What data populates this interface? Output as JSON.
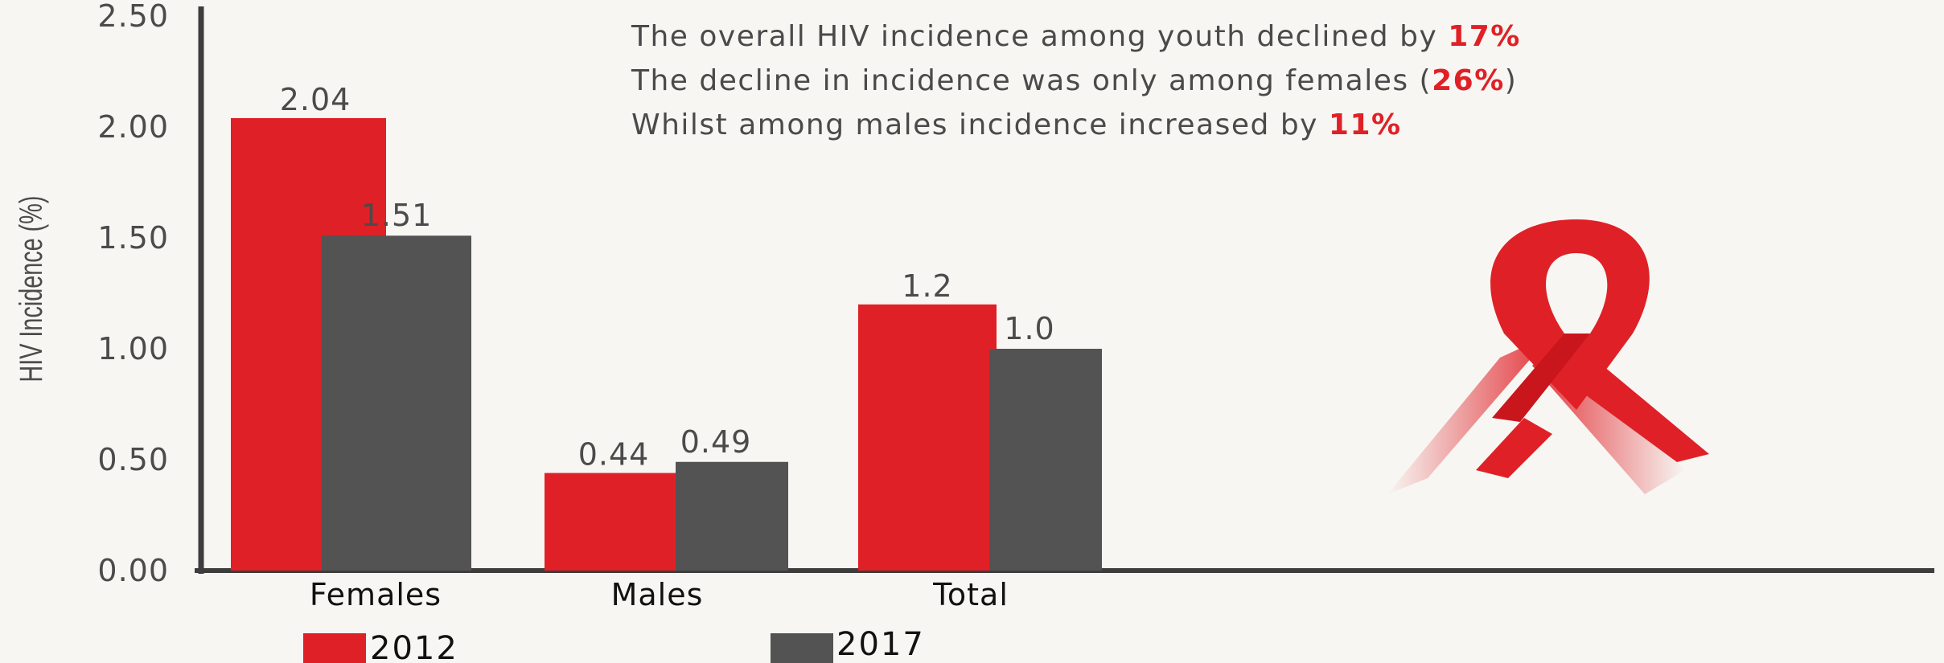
{
  "chart_data": {
    "type": "bar",
    "ylabel": "HIV Incidence (%)",
    "ylim": [
      0,
      2.5
    ],
    "yticks": [
      "0.00",
      "0.50",
      "1.00",
      "1.50",
      "2.00",
      "2.50"
    ],
    "categories": [
      "Females",
      "Males",
      "Total"
    ],
    "series": [
      {
        "name": "2012",
        "values": [
          2.04,
          0.44,
          1.2
        ],
        "labels": [
          "2.04",
          "0.44",
          "1.2"
        ],
        "color": "#e02027"
      },
      {
        "name": "2017",
        "values": [
          1.51,
          0.49,
          1.0
        ],
        "labels": [
          "1.51",
          "0.49",
          "1.0"
        ],
        "color": "#535353"
      }
    ],
    "legend_position": "bottom-left",
    "grid": false
  },
  "notes": [
    {
      "text": "The overall HIV incidence among youth declined by ",
      "highlight": "17%",
      "suffix": ""
    },
    {
      "text": "The decline in incidence was only among females (",
      "highlight": "26%",
      "suffix": ")"
    },
    {
      "text": "Whilst among males incidence increased by ",
      "highlight": "11%",
      "suffix": ""
    }
  ],
  "colors": {
    "accent": "#e02027",
    "dark": "#535353",
    "background": "#f7f6f2"
  },
  "icons": {
    "ribbon": "aids-awareness-ribbon-icon"
  }
}
